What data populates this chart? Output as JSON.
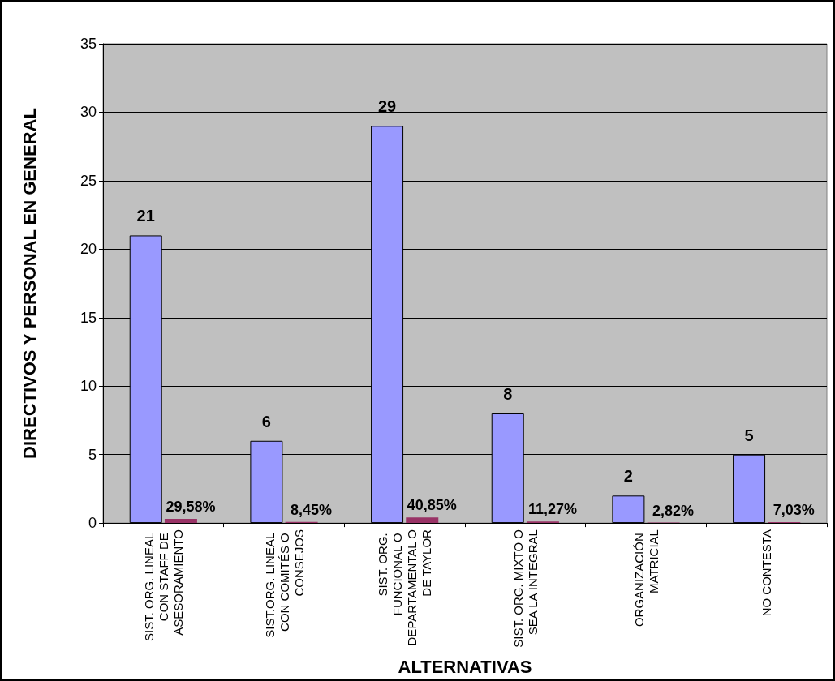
{
  "chart_data": {
    "type": "bar",
    "xlabel": "ALTERNATIVAS",
    "ylabel": "DIRECTIVOS Y PERSONAL EN GENERAL",
    "categories": [
      "SIST. ORG. LINEAL CON STAFF DE ASESORAMIENTO",
      "SIST.ORG. LINEAL CON COMITÉS O CONSEJOS",
      "SIST. ORG. FUNCIONAL O DEPARTAMENTAL O DE TAYLOR",
      "SIST. ORG. MIXTO O SEA LA INTEGRAL",
      "ORGANIZACIÓN MATRICIAL",
      "NO CONTESTA"
    ],
    "series": [
      {
        "color": "#9999ff",
        "values": [
          21,
          6,
          29,
          8,
          2,
          5
        ],
        "value_labels": [
          "21",
          "6",
          "29",
          "8",
          "2",
          "5"
        ]
      },
      {
        "color": "#993366",
        "values": [
          0.2958,
          0.0845,
          0.4085,
          0.1127,
          0.0282,
          0.0703
        ],
        "value_labels": [
          "29,58%",
          "8,45%",
          "40,85%",
          "11,27%",
          "2,82%",
          "7,03%"
        ]
      }
    ],
    "ylim": [
      0,
      35
    ],
    "yticks": [
      0,
      5,
      10,
      15,
      20,
      25,
      30,
      35
    ],
    "grid": "y"
  }
}
